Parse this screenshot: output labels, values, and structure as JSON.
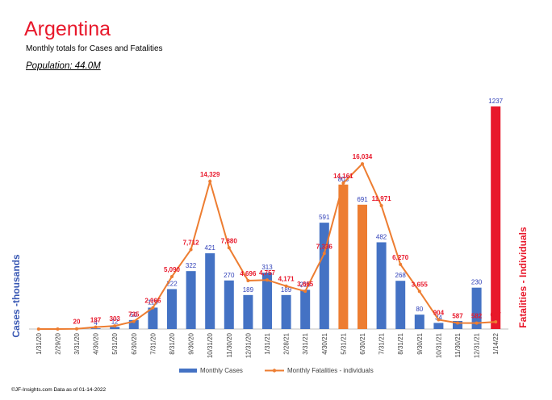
{
  "header": {
    "title": "Argentina",
    "subtitle": "Monthly totals for Cases and Fatalities",
    "population": "Population: 44.0M"
  },
  "footer": "©JF-Insights.com  Data as of 01-14-2022",
  "colors": {
    "blue": "#4472c4",
    "orange": "#ed7d31",
    "red": "#e8182b",
    "label_blue": "#3040b8"
  },
  "chart_data": {
    "type": "bar",
    "title": "Argentina",
    "subtitle": "Monthly totals for Cases and Fatalities",
    "ylabel_left": "Cases -thousands",
    "ylabel_right": "Fatalities - Individuals",
    "ylim_cases": [
      0,
      1237
    ],
    "ylim_fatalities": [
      0,
      21600
    ],
    "categories": [
      "1/31/20",
      "2/29/20",
      "3/31/20",
      "4/30/20",
      "5/31/20",
      "6/30/20",
      "7/31/20",
      "8/31/20",
      "9/30/20",
      "10/31/20",
      "11/30/20",
      "12/31/20",
      "1/31/21",
      "2/28/21",
      "3/31/21",
      "4/30/21",
      "5/31/21",
      "6/30/21",
      "7/31/21",
      "8/31/21",
      "9/30/21",
      "10/31/21",
      "11/30/21",
      "12/31/21",
      "1/14/22"
    ],
    "series": [
      {
        "name": "Monthly Cases",
        "type": "bar",
        "values": [
          0,
          0,
          1,
          4,
          12,
          50,
          119,
          222,
          322,
          421,
          270,
          189,
          313,
          189,
          218,
          591,
          803,
          691,
          482,
          268,
          80,
          34,
          45,
          230,
          1237
        ],
        "labels": [
          "",
          "",
          "",
          "4",
          "12",
          "50",
          "119",
          "222",
          "322",
          "421",
          "270",
          "189",
          "313",
          "189",
          "218",
          "591",
          "803",
          "691",
          "482",
          "268",
          "80",
          "34",
          "",
          "230",
          "1237"
        ],
        "bar_colors": [
          "blue",
          "blue",
          "blue",
          "blue",
          "blue",
          "blue",
          "blue",
          "blue",
          "blue",
          "blue",
          "blue",
          "blue",
          "blue",
          "blue",
          "blue",
          "blue",
          "orange",
          "orange",
          "blue",
          "blue",
          "blue",
          "blue",
          "blue",
          "blue",
          "red"
        ]
      },
      {
        "name": "Monthly Fatalities - individuals",
        "type": "line",
        "values": [
          0,
          0,
          20,
          187,
          303,
          735,
          2066,
          5090,
          7712,
          14329,
          7880,
          4696,
          4757,
          4171,
          3665,
          7336,
          14161,
          16034,
          11971,
          6270,
          3655,
          904,
          587,
          582,
          697
        ],
        "labels": [
          "",
          "",
          "20",
          "187",
          "303",
          "735",
          "2,066",
          "5,090",
          "7,712",
          "14,329",
          "7,880",
          "4,696",
          "4,757",
          "4,171",
          "3,665",
          "7,336",
          "14,161",
          "16,034",
          "11,971",
          "6,270",
          "3,655",
          "904",
          "587",
          "582",
          "697"
        ]
      }
    ],
    "legend": [
      "Monthly Cases",
      "Monthly Fatalities - individuals"
    ],
    "legend_position": "bottom",
    "grid": false
  }
}
